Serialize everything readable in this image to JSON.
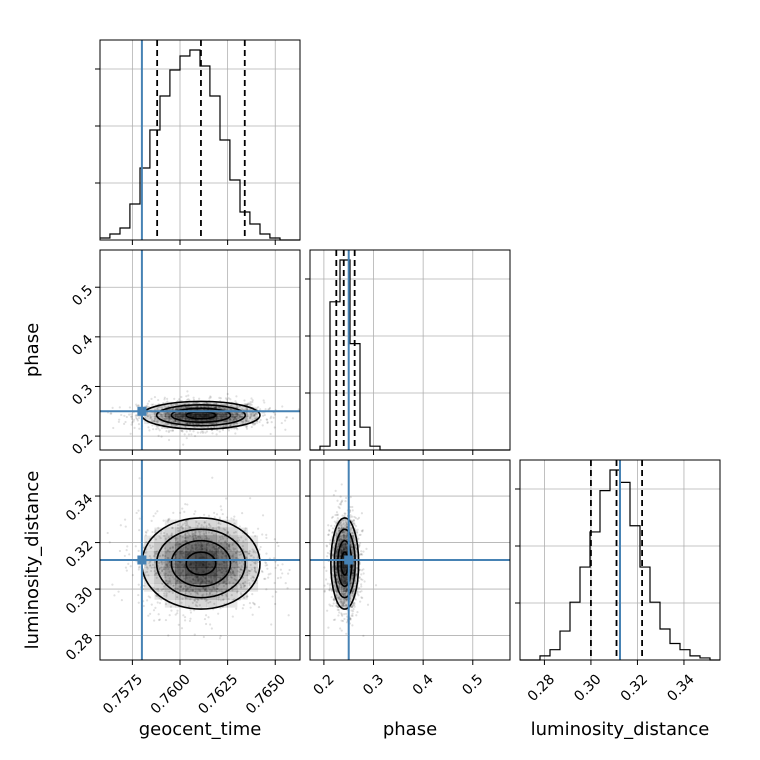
{
  "chart_data": {
    "type": "corner",
    "parameters": [
      "geocent_time",
      "phase",
      "luminosity_distance"
    ],
    "axis_labels": {
      "geocent_time": "geocent_time",
      "phase": "phase",
      "luminosity_distance": "luminosity_distance"
    },
    "ranges": {
      "geocent_time": [
        0.7558,
        0.7663
      ],
      "phase": [
        0.172,
        0.575
      ],
      "luminosity_distance": [
        0.2695,
        0.3555
      ]
    },
    "ticks": {
      "geocent_time": [
        {
          "v": 0.7575,
          "label": "0.7575"
        },
        {
          "v": 0.76,
          "label": "0.7600"
        },
        {
          "v": 0.7625,
          "label": "0.7625"
        },
        {
          "v": 0.765,
          "label": "0.7650"
        }
      ],
      "phase": [
        {
          "v": 0.2,
          "label": "0.2"
        },
        {
          "v": 0.3,
          "label": "0.3"
        },
        {
          "v": 0.4,
          "label": "0.4"
        },
        {
          "v": 0.5,
          "label": "0.5"
        }
      ],
      "luminosity_distance": [
        {
          "v": 0.28,
          "label": "0.28"
        },
        {
          "v": 0.3,
          "label": "0.30"
        },
        {
          "v": 0.32,
          "label": "0.32"
        },
        {
          "v": 0.34,
          "label": "0.34"
        }
      ]
    },
    "truths": {
      "geocent_time": 0.758,
      "phase": 0.25,
      "luminosity_distance": 0.3125
    },
    "quantiles": {
      "geocent_time": [
        0.7588,
        0.7611,
        0.7634
      ],
      "phase": [
        0.225,
        0.24,
        0.262
      ],
      "luminosity_distance": [
        0.3,
        0.311,
        0.322
      ]
    },
    "histograms": {
      "geocent_time": {
        "edges": [
          0.7558,
          0.75632,
          0.75685,
          0.75737,
          0.7579,
          0.75842,
          0.75895,
          0.75947,
          0.76,
          0.76052,
          0.76105,
          0.76157,
          0.7621,
          0.76262,
          0.76315,
          0.76367,
          0.7642,
          0.76472,
          0.76525,
          0.76577,
          0.7663
        ],
        "counts": [
          1,
          3,
          6,
          18,
          36,
          55,
          72,
          85,
          92,
          95,
          87,
          72,
          50,
          30,
          14,
          8,
          3,
          1,
          0,
          0
        ]
      },
      "phase": {
        "edges": [
          0.172,
          0.19215,
          0.2123,
          0.23245,
          0.2526,
          0.27275,
          0.2929,
          0.31305,
          0.3332,
          0.35335,
          0.3735,
          0.39365,
          0.4138,
          0.43395,
          0.4541,
          0.47425,
          0.4944,
          0.51455,
          0.5347,
          0.55485,
          0.575
        ],
        "counts": [
          0,
          2,
          78,
          100,
          56,
          12,
          2,
          0,
          0,
          0,
          0,
          0,
          0,
          0,
          0,
          0,
          0,
          0,
          0,
          0
        ]
      },
      "luminosity_distance": {
        "edges": [
          0.2695,
          0.2738,
          0.2781,
          0.2824,
          0.2867,
          0.291,
          0.2953,
          0.2996,
          0.3039,
          0.3082,
          0.3125,
          0.3168,
          0.3211,
          0.3254,
          0.3297,
          0.334,
          0.3383,
          0.3426,
          0.3469,
          0.3512,
          0.3555
        ],
        "counts": [
          0,
          0,
          2,
          5,
          14,
          28,
          45,
          62,
          82,
          92,
          86,
          65,
          45,
          28,
          15,
          8,
          5,
          2,
          1,
          0
        ]
      }
    },
    "grid": true,
    "colors": {
      "histogram": "#000000",
      "truth": "#4682b4",
      "quantile": "#000000",
      "density": "#000000"
    }
  }
}
